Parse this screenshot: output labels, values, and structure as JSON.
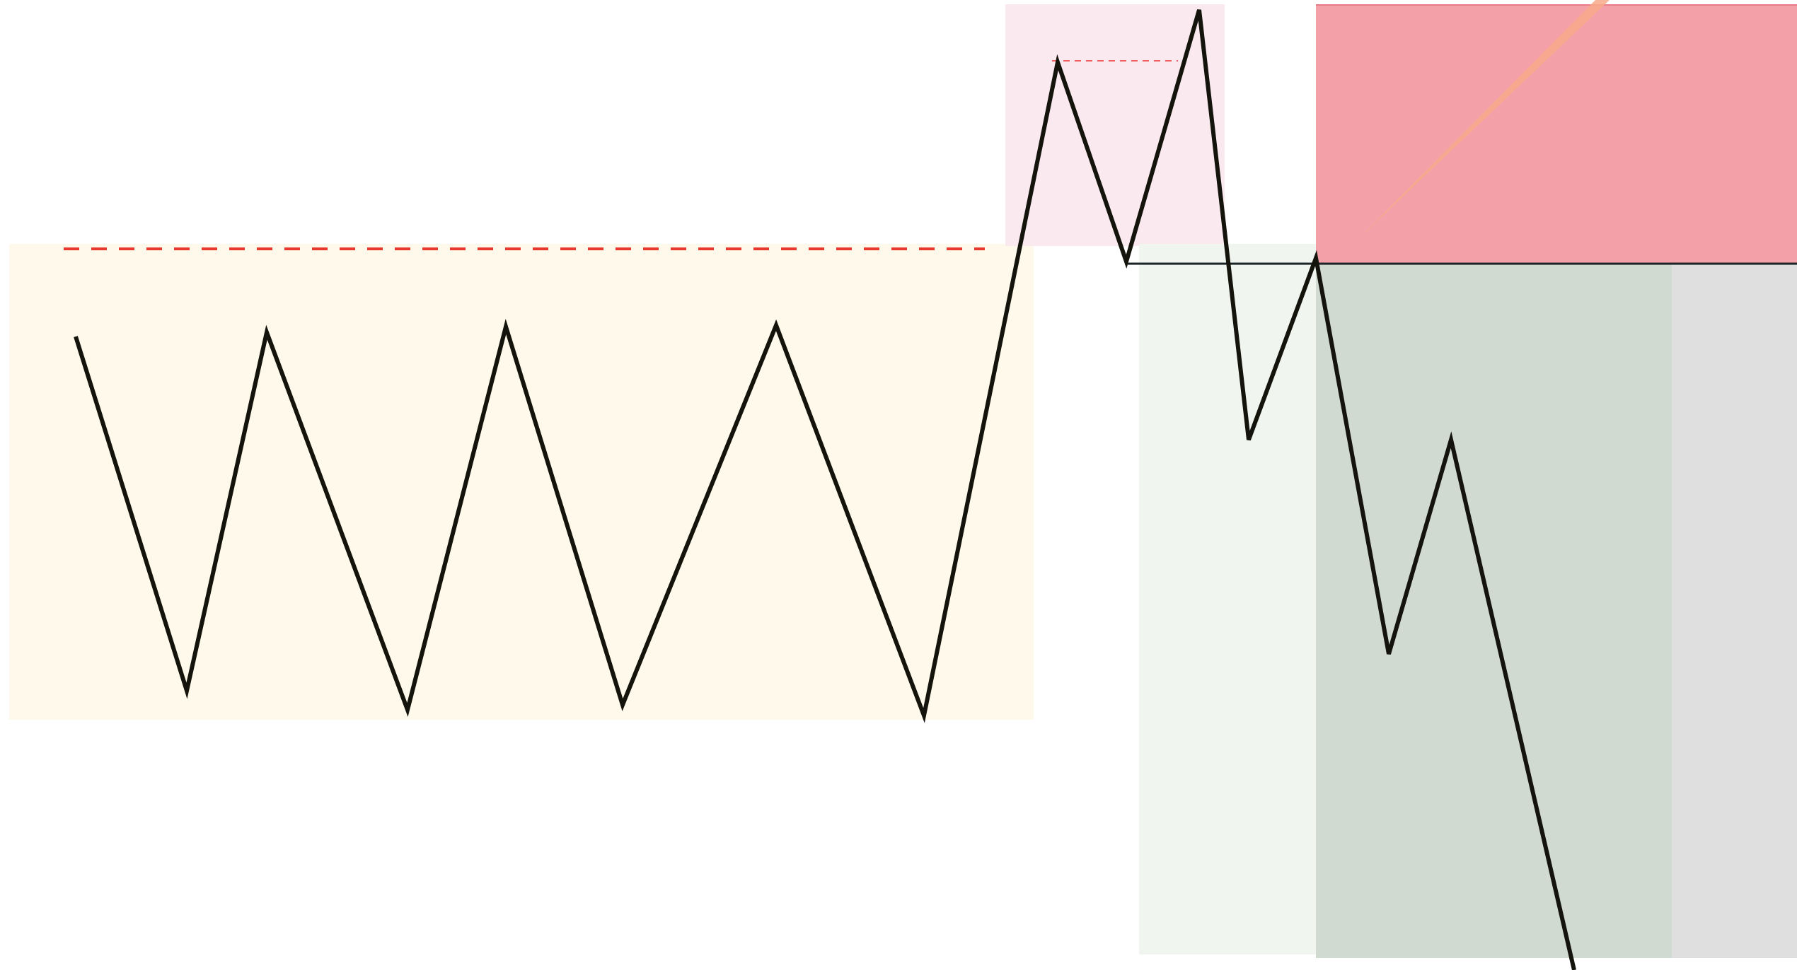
{
  "diagram": {
    "colors": {
      "background": "#ffffff",
      "range_zone": "#fff9ec",
      "sweep_zone": "#faeaf0",
      "short_entry_zone": "#f0f5ef",
      "target_zone": "#d1dad1",
      "projection_zone": "#dfdfdf",
      "stop_zone": "#f4a0a9",
      "stop_zone_border": "#e87d89",
      "range_high_line": "#e8372f",
      "sweep_high_line": "#f25c5c",
      "entry_line": "#1a2326",
      "price_path": "#14140c",
      "trend_ray": "#f8a98a"
    },
    "zones": [
      {
        "name": "range-zone",
        "role": "range"
      },
      {
        "name": "liquidity-sweep-zone",
        "role": "sweep"
      },
      {
        "name": "short-entry-zone",
        "role": "entry"
      },
      {
        "name": "target-zone",
        "role": "target"
      },
      {
        "name": "projection-zone",
        "role": "projection"
      },
      {
        "name": "stop-loss-zone",
        "role": "stop"
      }
    ],
    "lines": [
      {
        "name": "range-high-dashed-line",
        "style": "dashed"
      },
      {
        "name": "sweep-high-dashed-line",
        "style": "dashed"
      },
      {
        "name": "entry-level-line",
        "style": "solid"
      },
      {
        "name": "trend-ray",
        "style": "solid"
      }
    ],
    "price_path": {
      "name": "price-path-line",
      "pivots": 19
    }
  }
}
